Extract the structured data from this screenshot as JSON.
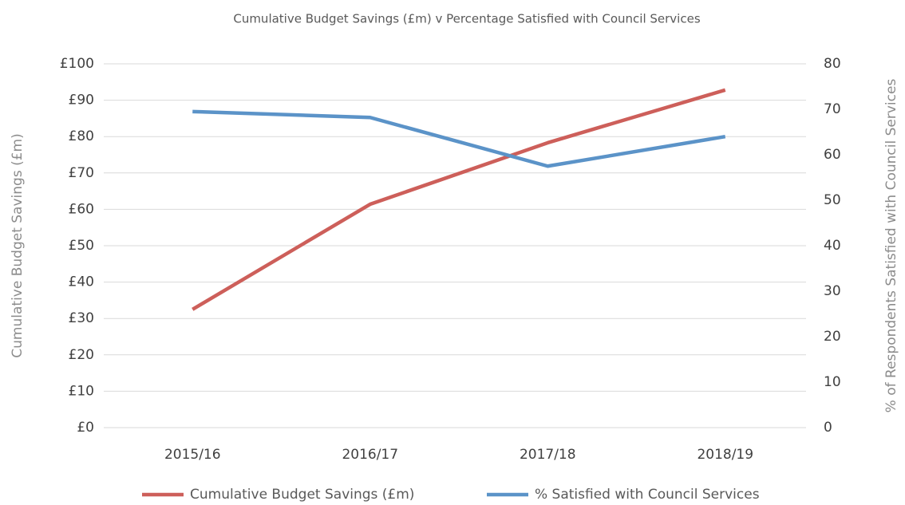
{
  "chart_data": {
    "type": "line",
    "title": "Cumulative Budget Savings (£m) v Percentage Satisfied with Council Services",
    "y_label": "Cumulative Budget Savings (£m)",
    "y2_label": "% of Respondents Satisfied with Council Services",
    "categories": [
      "2015/16",
      "2016/17",
      "2017/18",
      "2018/19"
    ],
    "series": [
      {
        "name": "Cumulative Budget Savings (£m)",
        "color": "#cd5f5a",
        "values": [
          32.5,
          61.4,
          78.3,
          92.8
        ]
      },
      {
        "name": "% Satisfied with Council Services",
        "color": "#5b93c8",
        "values": [
          69.5,
          68.2,
          57.5,
          64
        ],
        "axis": "y2"
      }
    ],
    "ylim": [
      0,
      100
    ],
    "yticks": [
      {
        "value": 0,
        "label": "£0"
      },
      {
        "value": 10,
        "label": "£10"
      },
      {
        "value": 20,
        "label": "£20"
      },
      {
        "value": 30,
        "label": "£30"
      },
      {
        "value": 40,
        "label": "£40"
      },
      {
        "value": 50,
        "label": "£50"
      },
      {
        "value": 60,
        "label": "£60"
      },
      {
        "value": 70,
        "label": "£70"
      },
      {
        "value": 80,
        "label": "£80"
      },
      {
        "value": 90,
        "label": "£90"
      },
      {
        "value": 100,
        "label": "£100"
      }
    ],
    "y2lim": [
      0,
      80
    ],
    "y2ticks": [
      0,
      10,
      20,
      30,
      40,
      50,
      60,
      70,
      80
    ],
    "grid": true,
    "legend": "bottom"
  }
}
